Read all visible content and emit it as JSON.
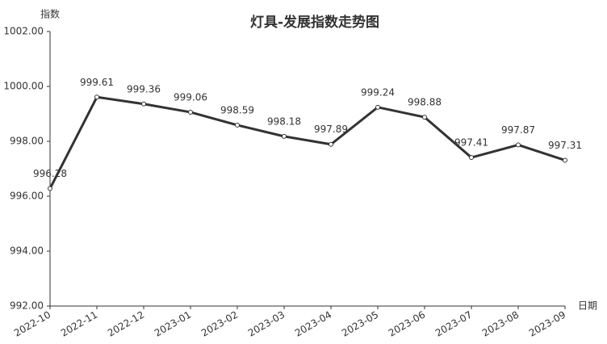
{
  "chart_data": {
    "type": "line",
    "title": "灯具-发展指数走势图",
    "y_label": "指数",
    "x_label": "日期",
    "categories": [
      "2022-10",
      "2022-11",
      "2022-12",
      "2023-01",
      "2023-02",
      "2023-03",
      "2023-04",
      "2023-05",
      "2023-06",
      "2023-07",
      "2023-08",
      "2023-09"
    ],
    "values": [
      996.28,
      999.61,
      999.36,
      999.06,
      998.59,
      998.18,
      997.89,
      999.24,
      998.88,
      997.41,
      997.87,
      997.31
    ],
    "color": "#333333",
    "ylim": [
      992,
      1002
    ],
    "yticks": [
      {
        "value": 992,
        "label": "992.00"
      },
      {
        "value": 994,
        "label": "994.00"
      },
      {
        "value": 996,
        "label": "996.00"
      },
      {
        "value": 998,
        "label": "998.00"
      },
      {
        "value": 1000,
        "label": "1000.00"
      },
      {
        "value": 1002,
        "label": "1002.00"
      }
    ],
    "grid": false
  }
}
